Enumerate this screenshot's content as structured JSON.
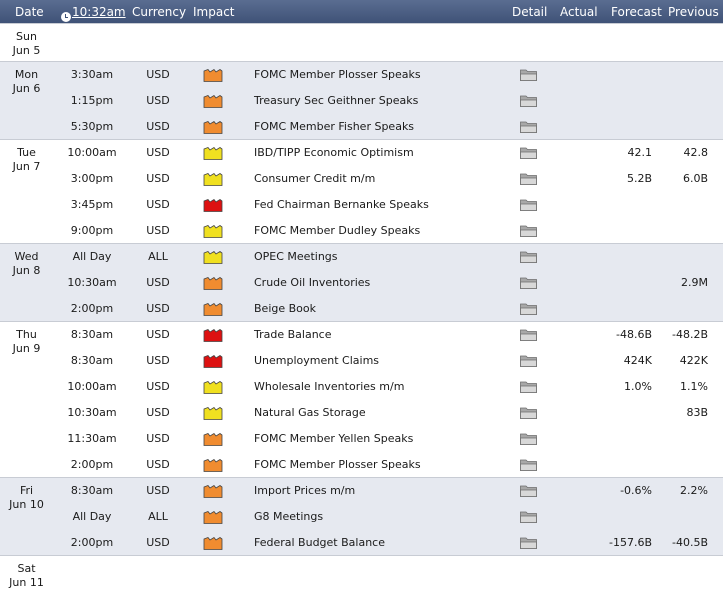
{
  "header": {
    "date": "Date",
    "time": "10:32am",
    "currency": "Currency",
    "impact": "Impact",
    "detail": "Detail",
    "actual": "Actual",
    "forecast": "Forecast",
    "previous": "Previous"
  },
  "colors": {
    "high": "#dd1111",
    "medium": "#f08c30",
    "low": "#f0e020"
  },
  "icons": {
    "clock": "clock-icon",
    "impact": "impact-folder-icon",
    "detail": "detail-folder-icon"
  },
  "days": [
    {
      "day": "Sun",
      "date": "Jun 5",
      "events": []
    },
    {
      "day": "Mon",
      "date": "Jun 6",
      "events": [
        {
          "time": "3:30am",
          "currency": "USD",
          "impact": "medium",
          "event": "FOMC Member Plosser Speaks",
          "forecast": "",
          "previous": ""
        },
        {
          "time": "1:15pm",
          "currency": "USD",
          "impact": "medium",
          "event": "Treasury Sec Geithner Speaks",
          "forecast": "",
          "previous": ""
        },
        {
          "time": "5:30pm",
          "currency": "USD",
          "impact": "medium",
          "event": "FOMC Member Fisher Speaks",
          "forecast": "",
          "previous": ""
        }
      ]
    },
    {
      "day": "Tue",
      "date": "Jun 7",
      "events": [
        {
          "time": "10:00am",
          "currency": "USD",
          "impact": "low",
          "event": "IBD/TIPP Economic Optimism",
          "forecast": "42.1",
          "previous": "42.8"
        },
        {
          "time": "3:00pm",
          "currency": "USD",
          "impact": "low",
          "event": "Consumer Credit m/m",
          "forecast": "5.2B",
          "previous": "6.0B"
        },
        {
          "time": "3:45pm",
          "currency": "USD",
          "impact": "high",
          "event": "Fed Chairman Bernanke Speaks",
          "forecast": "",
          "previous": ""
        },
        {
          "time": "9:00pm",
          "currency": "USD",
          "impact": "low",
          "event": "FOMC Member Dudley Speaks",
          "forecast": "",
          "previous": ""
        }
      ]
    },
    {
      "day": "Wed",
      "date": "Jun 8",
      "events": [
        {
          "time": "All Day",
          "currency": "ALL",
          "impact": "low",
          "event": "OPEC Meetings",
          "forecast": "",
          "previous": ""
        },
        {
          "time": "10:30am",
          "currency": "USD",
          "impact": "medium",
          "event": "Crude Oil Inventories",
          "forecast": "",
          "previous": "2.9M"
        },
        {
          "time": "2:00pm",
          "currency": "USD",
          "impact": "medium",
          "event": "Beige Book",
          "forecast": "",
          "previous": ""
        }
      ]
    },
    {
      "day": "Thu",
      "date": "Jun 9",
      "events": [
        {
          "time": "8:30am",
          "currency": "USD",
          "impact": "high",
          "event": "Trade Balance",
          "forecast": "-48.6B",
          "previous": "-48.2B"
        },
        {
          "time": "8:30am",
          "currency": "USD",
          "impact": "high",
          "event": "Unemployment Claims",
          "forecast": "424K",
          "previous": "422K"
        },
        {
          "time": "10:00am",
          "currency": "USD",
          "impact": "low",
          "event": "Wholesale Inventories m/m",
          "forecast": "1.0%",
          "previous": "1.1%"
        },
        {
          "time": "10:30am",
          "currency": "USD",
          "impact": "low",
          "event": "Natural Gas Storage",
          "forecast": "",
          "previous": "83B"
        },
        {
          "time": "11:30am",
          "currency": "USD",
          "impact": "medium",
          "event": "FOMC Member Yellen Speaks",
          "forecast": "",
          "previous": ""
        },
        {
          "time": "2:00pm",
          "currency": "USD",
          "impact": "medium",
          "event": "FOMC Member Plosser Speaks",
          "forecast": "",
          "previous": ""
        }
      ]
    },
    {
      "day": "Fri",
      "date": "Jun 10",
      "events": [
        {
          "time": "8:30am",
          "currency": "USD",
          "impact": "medium",
          "event": "Import Prices m/m",
          "forecast": "-0.6%",
          "previous": "2.2%"
        },
        {
          "time": "All Day",
          "currency": "ALL",
          "impact": "medium",
          "event": "G8 Meetings",
          "forecast": "",
          "previous": ""
        },
        {
          "time": "2:00pm",
          "currency": "USD",
          "impact": "medium",
          "event": "Federal Budget Balance",
          "forecast": "-157.6B",
          "previous": "-40.5B"
        }
      ]
    },
    {
      "day": "Sat",
      "date": "Jun 11",
      "events": []
    }
  ]
}
